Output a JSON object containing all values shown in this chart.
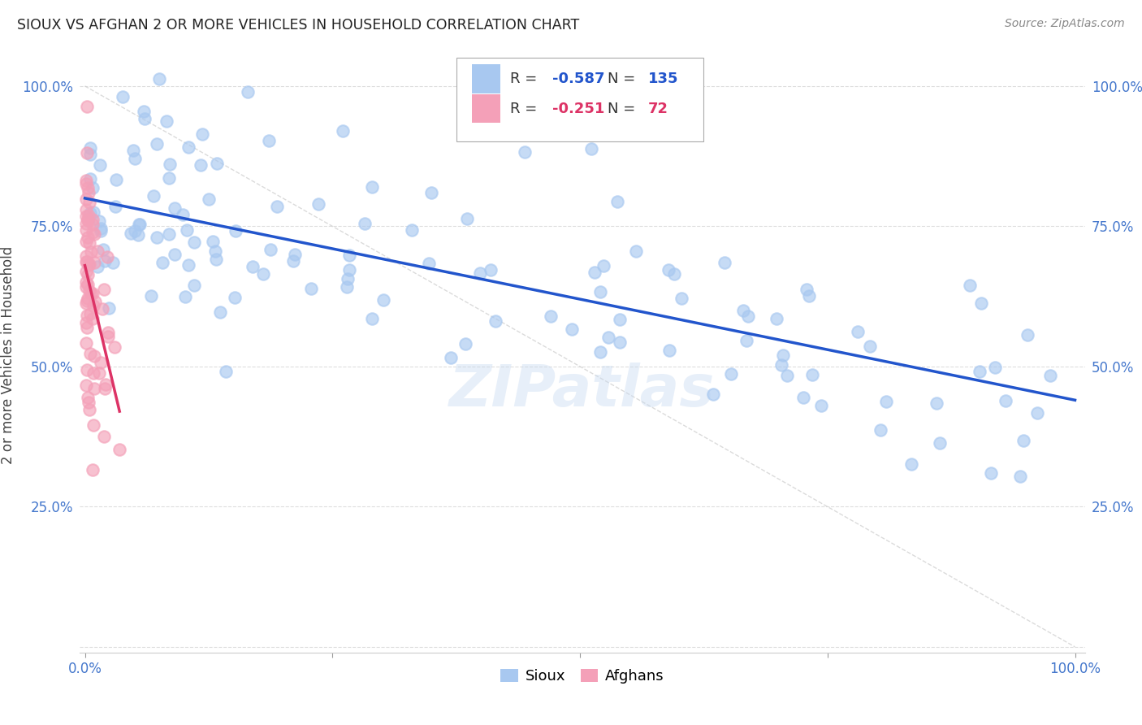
{
  "title": "SIOUX VS AFGHAN 2 OR MORE VEHICLES IN HOUSEHOLD CORRELATION CHART",
  "source": "Source: ZipAtlas.com",
  "ylabel_label": "2 or more Vehicles in Household",
  "legend_blue_R": "-0.587",
  "legend_blue_N": "135",
  "legend_pink_R": "-0.251",
  "legend_pink_N": "72",
  "legend_blue_label": "Sioux",
  "legend_pink_label": "Afghans",
  "blue_color": "#a8c8f0",
  "pink_color": "#f4a0b8",
  "blue_line_color": "#2255cc",
  "pink_line_color": "#dd3366",
  "tick_color": "#4477cc",
  "watermark": "ZIPatlas",
  "blue_line_x0": 0.0,
  "blue_line_y0": 0.8,
  "blue_line_x1": 1.0,
  "blue_line_y1": 0.44,
  "pink_line_x0": 0.0,
  "pink_line_y0": 0.68,
  "pink_line_x1": 0.035,
  "pink_line_y1": 0.42,
  "xmin": 0.0,
  "xmax": 1.0,
  "ymin": 0.0,
  "ymax": 1.05
}
